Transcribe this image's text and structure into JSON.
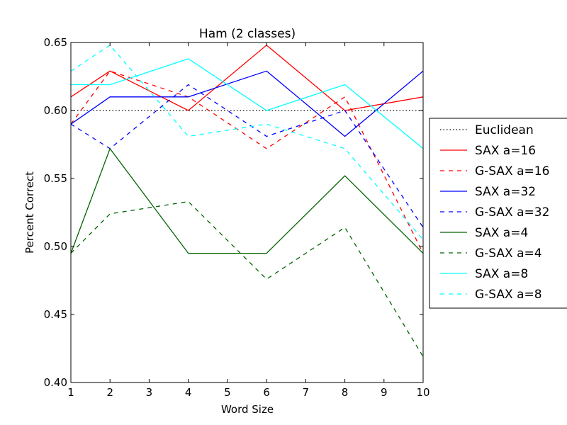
{
  "chart_data": {
    "type": "line",
    "title": "Ham (2 classes)",
    "xlabel": "Word Size",
    "ylabel": "Percent Correct",
    "xlim": [
      1,
      10
    ],
    "ylim": [
      0.4,
      0.65
    ],
    "xticks": [
      1,
      2,
      3,
      4,
      5,
      6,
      7,
      8,
      9,
      10
    ],
    "xtick_labels": [
      "1",
      "2",
      "3",
      "4",
      "5",
      "6",
      "7",
      "8",
      "9",
      "10"
    ],
    "yticks": [
      0.4,
      0.45,
      0.5,
      0.55,
      0.6,
      0.65
    ],
    "ytick_labels": [
      "0.40",
      "0.45",
      "0.50",
      "0.55",
      "0.60",
      "0.65"
    ],
    "grid": false,
    "legend_placement": "outside-right",
    "x": [
      1,
      2,
      4,
      6,
      8,
      10
    ],
    "series": [
      {
        "name": "Euclidean",
        "color": "#000000",
        "style": "dotted",
        "x": [
          1,
          10
        ],
        "values": [
          0.6,
          0.6
        ]
      },
      {
        "name": "SAX a=16",
        "color": "#ff0000",
        "style": "solid",
        "values": [
          0.61,
          0.629,
          0.6,
          0.648,
          0.6,
          0.61
        ]
      },
      {
        "name": "G-SAX a=16",
        "color": "#ff0000",
        "style": "dashed",
        "values": [
          0.59,
          0.629,
          0.61,
          0.572,
          0.61,
          0.495
        ]
      },
      {
        "name": "SAX a=32",
        "color": "#0000ff",
        "style": "solid",
        "values": [
          0.59,
          0.61,
          0.61,
          0.629,
          0.581,
          0.629
        ]
      },
      {
        "name": "G-SAX a=32",
        "color": "#0000ff",
        "style": "dashed",
        "values": [
          0.59,
          0.572,
          0.619,
          0.581,
          0.6,
          0.514
        ]
      },
      {
        "name": "SAX a=4",
        "color": "#006400",
        "style": "solid",
        "values": [
          0.495,
          0.572,
          0.495,
          0.495,
          0.552,
          0.495
        ]
      },
      {
        "name": "G-SAX a=4",
        "color": "#006400",
        "style": "dashed",
        "values": [
          0.495,
          0.524,
          0.533,
          0.476,
          0.514,
          0.419
        ]
      },
      {
        "name": "SAX a=8",
        "color": "#00ffff",
        "style": "solid",
        "values": [
          0.619,
          0.619,
          0.638,
          0.6,
          0.619,
          0.572
        ]
      },
      {
        "name": "G-SAX a=8",
        "color": "#00ffff",
        "style": "dashed",
        "values": [
          0.629,
          0.648,
          0.581,
          0.59,
          0.572,
          0.505
        ]
      }
    ]
  }
}
